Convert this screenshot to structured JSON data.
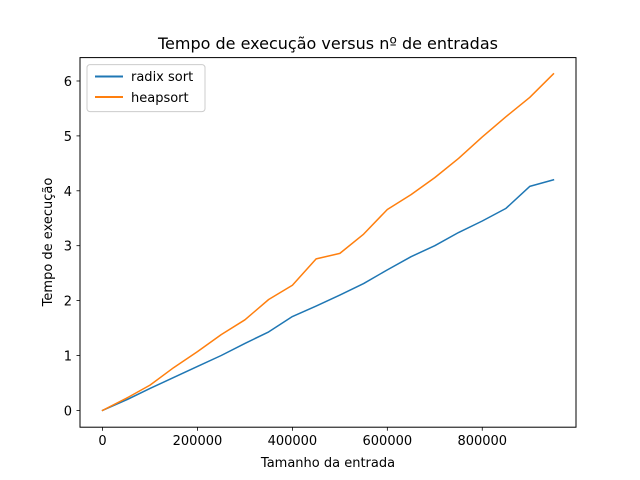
{
  "chart_data": {
    "type": "line",
    "title": "Tempo de execução versus nº de entradas",
    "xlabel": "Tamanho da entrada",
    "ylabel": "Tempo de execução",
    "xlim": [
      -47500,
      997500
    ],
    "ylim": [
      -0.306,
      6.426
    ],
    "xticks": [
      0,
      200000,
      400000,
      600000,
      800000
    ],
    "xtick_labels": [
      "0",
      "200000",
      "400000",
      "600000",
      "800000"
    ],
    "yticks": [
      0,
      1,
      2,
      3,
      4,
      5,
      6
    ],
    "ytick_labels": [
      "0",
      "1",
      "2",
      "3",
      "4",
      "5",
      "6"
    ],
    "grid": false,
    "legend_position": "top-left",
    "x": [
      0,
      50000,
      100000,
      150000,
      200000,
      250000,
      300000,
      350000,
      400000,
      450000,
      500000,
      550000,
      600000,
      650000,
      700000,
      750000,
      800000,
      850000,
      900000,
      950000
    ],
    "series": [
      {
        "name": "radix sort",
        "color": "#1f77b4",
        "values": [
          0.0,
          0.19,
          0.4,
          0.6,
          0.8,
          1.0,
          1.22,
          1.43,
          1.71,
          1.9,
          2.1,
          2.31,
          2.56,
          2.8,
          3.0,
          3.24,
          3.45,
          3.68,
          4.08,
          4.2
        ]
      },
      {
        "name": "heapsort",
        "color": "#ff7f0e",
        "values": [
          0.0,
          0.22,
          0.46,
          0.78,
          1.07,
          1.38,
          1.65,
          2.02,
          2.28,
          2.76,
          2.86,
          3.21,
          3.66,
          3.93,
          4.24,
          4.59,
          4.98,
          5.35,
          5.7,
          6.13
        ]
      }
    ]
  }
}
